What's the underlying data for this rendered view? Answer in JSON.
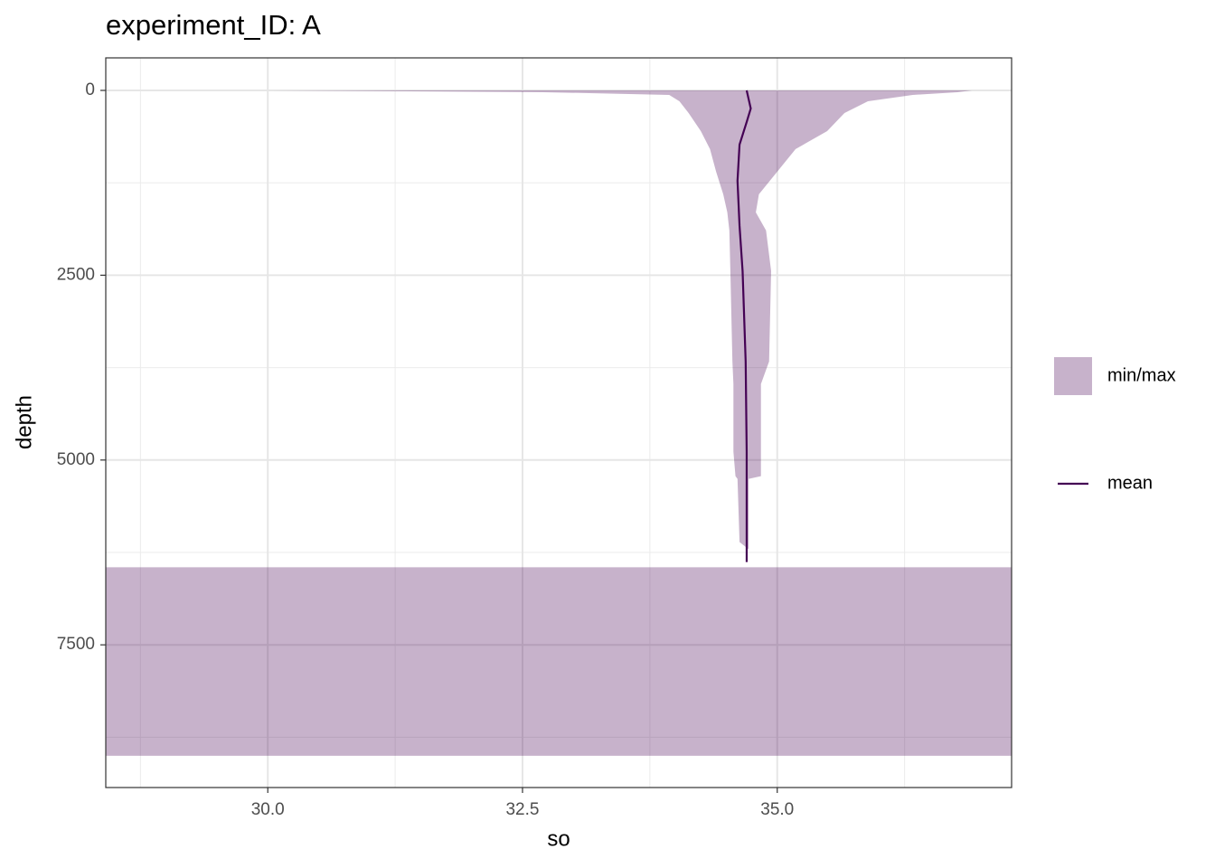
{
  "chart_data": {
    "type": "ribbon_line",
    "title": "experiment_ID: A",
    "xlabel": "so",
    "ylabel": "depth",
    "xlim": [
      28.41,
      37.3
    ],
    "ylim": [
      -440,
      9430
    ],
    "y_reversed": true,
    "xticks": [
      {
        "value": 30,
        "label": "30.0"
      },
      {
        "value": 32.5,
        "label": "32.5"
      },
      {
        "value": 35,
        "label": "35.0"
      }
    ],
    "yticks": [
      0,
      2500,
      5000,
      7500
    ],
    "grid": true,
    "minor_grid": true,
    "legend": "right",
    "series": [
      {
        "name": "min/max",
        "type": "ribbon",
        "color": "#440154",
        "alpha": 0.3,
        "depth": [
          0,
          24,
          61,
          147,
          306,
          550,
          794,
          1100,
          1405,
          1650,
          1894,
          2444,
          3666,
          3972,
          4888,
          5218,
          5255,
          6110,
          6208,
          null,
          6450,
          9000
        ],
        "min": [
          30.05,
          32.7,
          33.94,
          34.04,
          34.13,
          34.25,
          34.34,
          34.4,
          34.47,
          34.51,
          34.53,
          34.54,
          34.56,
          34.57,
          34.57,
          34.59,
          34.61,
          34.63,
          34.72,
          null,
          28.41,
          28.41
        ],
        "max": [
          36.91,
          36.77,
          36.33,
          35.89,
          35.66,
          35.49,
          35.18,
          35.0,
          34.82,
          34.79,
          34.89,
          34.94,
          34.92,
          34.84,
          34.84,
          34.84,
          34.72,
          34.72,
          34.72,
          null,
          37.3,
          37.3
        ]
      },
      {
        "name": "mean",
        "type": "line",
        "color": "#440154",
        "depth": [
          0,
          245,
          428,
          733,
          1222,
          1833,
          2444,
          3666,
          4888,
          5600,
          6380
        ],
        "values": [
          34.7,
          34.74,
          34.7,
          34.63,
          34.61,
          34.63,
          34.66,
          34.69,
          34.7,
          34.7,
          34.7
        ]
      }
    ]
  }
}
